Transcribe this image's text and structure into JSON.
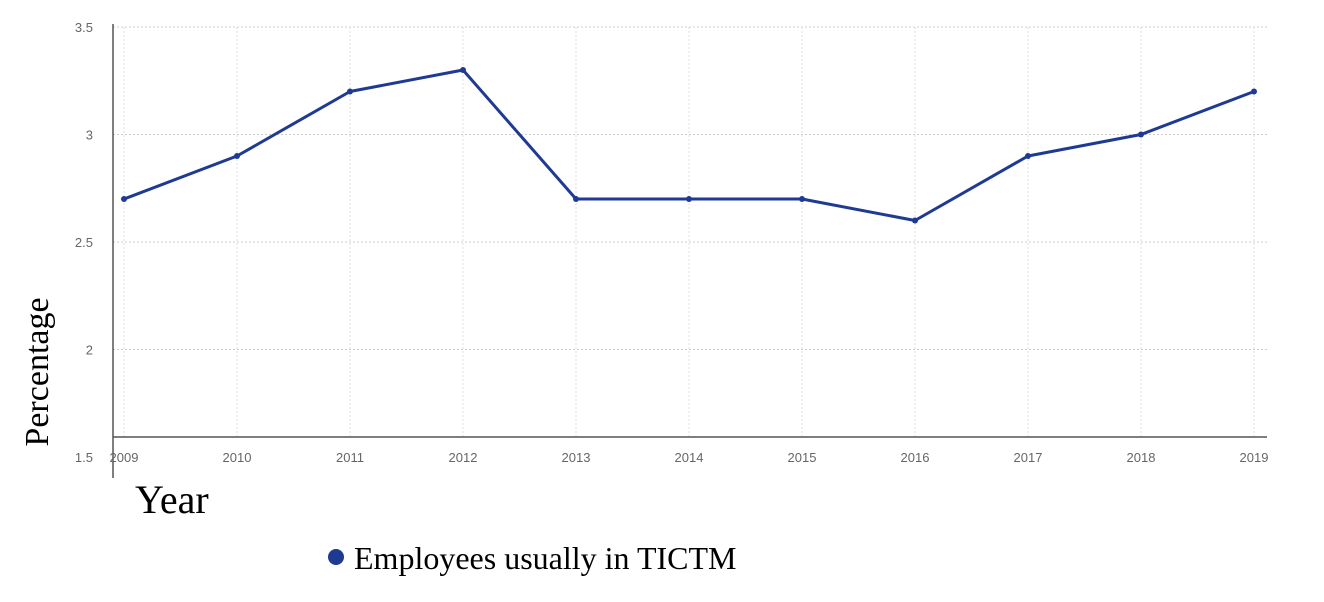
{
  "chart_data": {
    "type": "line",
    "x": [
      "2009",
      "2010",
      "2011",
      "2012",
      "2013",
      "2014",
      "2015",
      "2016",
      "2017",
      "2018",
      "2019"
    ],
    "series": [
      {
        "name": "Employees usually in TICTM",
        "values": [
          2.7,
          2.9,
          3.2,
          3.3,
          2.7,
          2.7,
          2.7,
          2.6,
          2.9,
          3.0,
          3.2
        ],
        "color": "#1f3a93"
      }
    ],
    "xlabel": "Year",
    "ylabel": "Percentage",
    "ylim": [
      1.5,
      3.5
    ],
    "yticks": [
      "1.5",
      "2",
      "2.5",
      "3",
      "3.5"
    ],
    "grid": true,
    "legend_position": "bottom"
  }
}
